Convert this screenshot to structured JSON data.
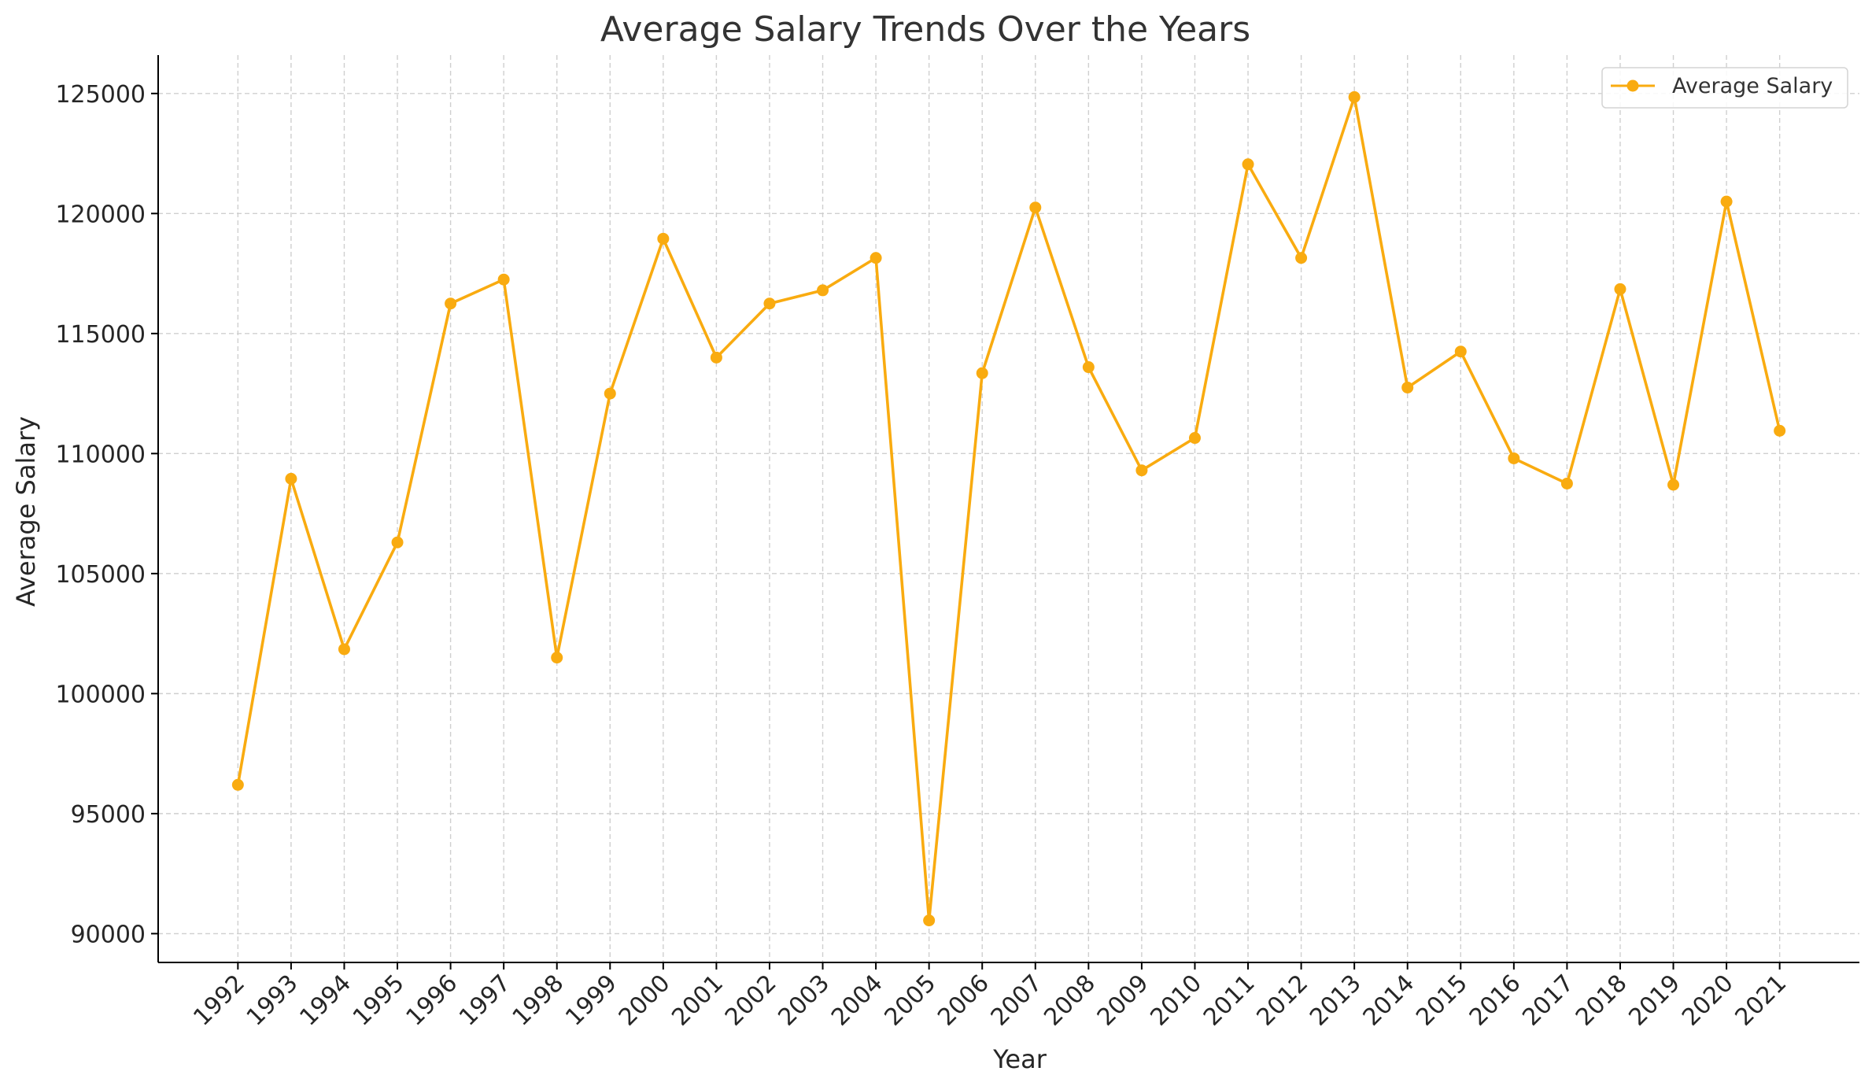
{
  "chart_data": {
    "type": "line",
    "title": "Average Salary Trends Over the Years",
    "xlabel": "Year",
    "ylabel": "Average Salary",
    "x": [
      1992,
      1993,
      1994,
      1995,
      1996,
      1997,
      1998,
      1999,
      2000,
      2001,
      2002,
      2003,
      2004,
      2005,
      2006,
      2007,
      2008,
      2009,
      2010,
      2011,
      2012,
      2013,
      2014,
      2015,
      2016,
      2017,
      2018,
      2019,
      2020,
      2021
    ],
    "x_tick_labels": [
      "1992",
      "1993",
      "1994",
      "1995",
      "1996",
      "1997",
      "1998",
      "1999",
      "2000",
      "2001",
      "2002",
      "2003",
      "2004",
      "2005",
      "2006",
      "2007",
      "2008",
      "2009",
      "2010",
      "2011",
      "2012",
      "2013",
      "2014",
      "2015",
      "2016",
      "2017",
      "2018",
      "2019",
      "2020",
      "2021"
    ],
    "series": [
      {
        "name": "Average Salary",
        "color": "#f9ab10",
        "marker": "circle",
        "values": [
          96200,
          108950,
          101850,
          106300,
          116250,
          117250,
          101500,
          112500,
          118950,
          114000,
          116250,
          116800,
          118150,
          90550,
          113350,
          120250,
          113600,
          109300,
          110650,
          122050,
          118150,
          124850,
          112750,
          114250,
          109800,
          108750,
          116850,
          108700,
          120500,
          110950
        ]
      }
    ],
    "ylim": [
      88800,
      126600
    ],
    "xlim": [
      1990.5,
      2022.5
    ],
    "y_ticks": [
      90000,
      95000,
      100000,
      105000,
      110000,
      115000,
      120000,
      125000
    ],
    "y_tick_labels": [
      "90000",
      "95000",
      "100000",
      "105000",
      "110000",
      "115000",
      "120000",
      "125000"
    ],
    "grid": true,
    "legend_position": "top-right",
    "x_tick_rotation": 45
  }
}
